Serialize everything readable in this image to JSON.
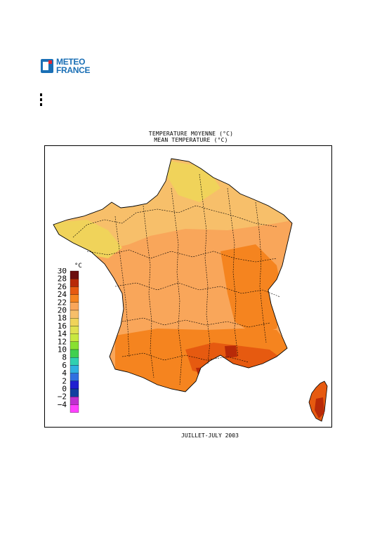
{
  "logo": {
    "line1": "METEO",
    "line2": "FRANCE",
    "icon": "meteo-france-logo-icon",
    "colors": {
      "brand_blue": "#1a6fb5",
      "accent_red": "#e3262f"
    }
  },
  "titles": {
    "fr": "TEMPERATURE MOYENNE (°C)",
    "en": "MEAN TEMPERATURE (°C)"
  },
  "caption": "JUILLET-JULY 2003",
  "legend": {
    "unit": "°C",
    "ticks": [
      "30",
      "28",
      "26",
      "24",
      "22",
      "20",
      "18",
      "16",
      "14",
      "12",
      "10",
      "8",
      "6",
      "4",
      "2",
      "0",
      "−2",
      "−4"
    ],
    "colors": [
      "#6b0e0e",
      "#b82a08",
      "#e65a10",
      "#f5841f",
      "#f9a65a",
      "#f7bf6a",
      "#f0d35a",
      "#e0e050",
      "#c8e840",
      "#88e030",
      "#40d050",
      "#30d0b0",
      "#30b0e0",
      "#3070e0",
      "#2020d0",
      "#1040a0",
      "#c030d0",
      "#ff40ff"
    ]
  },
  "chart_data": {
    "type": "heatmap",
    "title": "TEMPERATURE MOYENNE (°C) / MEAN TEMPERATURE (°C)",
    "period": "JUILLET-JULY 2003",
    "scale_min": -4,
    "scale_max": 30,
    "scale_step": 2,
    "unit": "°C"
  }
}
